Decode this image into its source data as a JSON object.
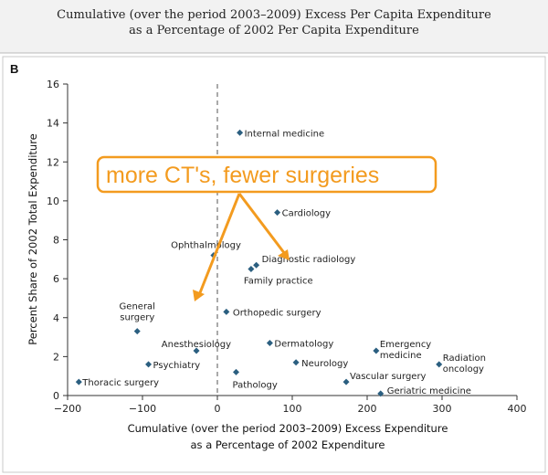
{
  "chart_data": {
    "type": "scatter",
    "title": "Cumulative (over the period 2003–2009) Excess Per Capita Expenditure",
    "subtitle": "as a Percentage of 2002 Per Capita Expenditure",
    "panel_label": "B",
    "xlabel": "Cumulative (over the period 2003–2009) Excess Expenditure",
    "xlabel2": "as a Percentage of 2002 Expenditure",
    "ylabel": "Percent Share of 2002 Total Expenditure",
    "xlim": [
      -200,
      400
    ],
    "ylim": [
      0,
      16
    ],
    "xticks": [
      "−200",
      "−100",
      "0",
      "100",
      "200",
      "300",
      "400"
    ],
    "yticks": [
      "0",
      "2",
      "4",
      "6",
      "8",
      "10",
      "12",
      "14",
      "16"
    ],
    "reference_line_x": 0,
    "grid": false,
    "marker_color": "#2b5f80",
    "points": [
      {
        "label": "Internal medicine",
        "x": 30,
        "y": 13.5
      },
      {
        "label": "Cardiology",
        "x": 80,
        "y": 9.4
      },
      {
        "label": "Ophthalmology",
        "x": -5,
        "y": 7.2
      },
      {
        "label": "Diagnostic radiology",
        "x": 52,
        "y": 6.7
      },
      {
        "label": "Family practice",
        "x": 45,
        "y": 6.5
      },
      {
        "label": "Orthopedic surgery",
        "x": 12,
        "y": 4.3
      },
      {
        "label": "General surgery",
        "x": -107,
        "y": 3.3
      },
      {
        "label": "Anesthesiology",
        "x": -28,
        "y": 2.3
      },
      {
        "label": "Dermatology",
        "x": 70,
        "y": 2.7
      },
      {
        "label": "Emergency medicine",
        "x": 212,
        "y": 2.3
      },
      {
        "label": "Psychiatry",
        "x": -92,
        "y": 1.6
      },
      {
        "label": "Neurology",
        "x": 105,
        "y": 1.7
      },
      {
        "label": "Radiation oncology",
        "x": 296,
        "y": 1.6
      },
      {
        "label": "Pathology",
        "x": 25,
        "y": 1.2
      },
      {
        "label": "Vascular surgery",
        "x": 172,
        "y": 0.7
      },
      {
        "label": "Thoracic surgery",
        "x": -185,
        "y": 0.7
      },
      {
        "label": "Geriatric medicine",
        "x": 218,
        "y": 0.1
      }
    ]
  },
  "annotation": {
    "text": "more CT's, fewer surgeries",
    "color": "#f39b1f"
  }
}
